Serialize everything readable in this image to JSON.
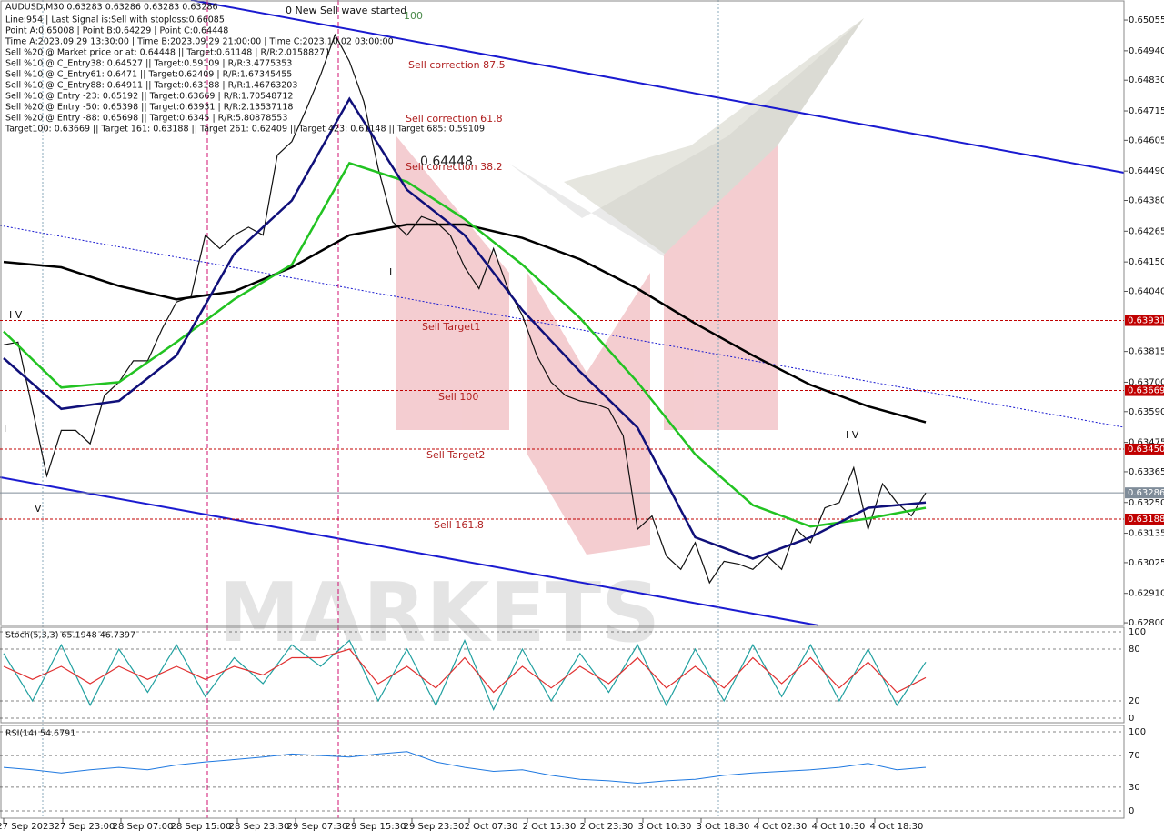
{
  "chart_data": {
    "type": "line",
    "symbol_line": "AUDUSD,M30  0.63283 0.63286 0.63283 0.63286",
    "info": [
      "Line:954 | Last Signal is:Sell with stoploss:0.66085",
      "Point A:0.65008 | Point B:0.64229 | Point C:0.64448",
      "Time A:2023.09.29 13:30:00 | Time B:2023.09.29 21:00:00 | Time C:2023.10.02 03:00:00",
      "Sell %20 @ Market price or at: 0.64448 || Target:0.61148 | R/R:2.01588271",
      "Sell %10 @ C_Entry38: 0.64527 || Target:0.59109 | R/R:3.4775353",
      "Sell %10 @ C_Entry61: 0.6471 || Target:0.62409 | R/R:1.67345455",
      "Sell %10 @ C_Entry88: 0.64911 || Target:0.63188 | R/R:1.46763203",
      "Sell %10 @ Entry -23: 0.65192 || Target:0.63669 | R/R:1.70548712",
      "Sell %20 @ Entry -50: 0.65398 || Target:0.63931 | R/R:2.13537118",
      "Sell %20 @ Entry -88: 0.65698 || Target:0.6345 | R/R:5.80878553",
      "Target100: 0.63669 || Target 161: 0.63188 || Target 261: 0.62409 || Target 423: 0.61148 || Target 685: 0.59109"
    ],
    "annotations": [
      "0 New Sell wave started",
      "100",
      "Sell correction 87.5",
      "Sell correction 61.8",
      "Sell correction 38.2",
      "0.64448",
      "Sell Target1",
      "Sell 100",
      "Sell Target2",
      "Sell 161.8",
      "I V",
      "V",
      "I",
      "I V",
      "I"
    ],
    "xlabels": [
      "27 Sep 2023",
      "27 Sep 23:00",
      "28 Sep 07:00",
      "28 Sep 15:00",
      "28 Sep 23:30",
      "29 Sep 07:30",
      "29 Sep 15:30",
      "29 Sep 23:30",
      "2 Oct 07:30",
      "2 Oct 15:30",
      "2 Oct 23:30",
      "3 Oct 10:30",
      "3 Oct 18:30",
      "4 Oct 02:30",
      "4 Oct 10:30",
      "4 Oct 18:30"
    ],
    "ylim": [
      0.6279,
      0.6513
    ],
    "yticks": [
      0.65055,
      {
        "value": 0.6494,
        "label": "0.64940"
      },
      {
        "value": 0.6483,
        "label": "0.64830"
      },
      0.64715,
      0.64605,
      {
        "value": 0.6449,
        "label": "0.64490"
      },
      {
        "value": 0.6438,
        "label": "0.64380"
      },
      0.64265,
      {
        "value": 0.6415,
        "label": "0.64150"
      },
      {
        "value": 0.6404,
        "label": "0.64040"
      },
      0.63815,
      {
        "value": 0.637,
        "label": "0.63700"
      },
      {
        "value": 0.6359,
        "label": "0.63590"
      },
      0.63475,
      0.63365,
      {
        "value": 0.6325,
        "label": "0.63250"
      },
      0.63135,
      0.63025,
      {
        "value": 0.6291,
        "label": "0.62910"
      },
      {
        "value": 0.628,
        "label": "0.62800"
      }
    ],
    "levels": [
      {
        "value": 0.63931,
        "color": "#c00000"
      },
      {
        "value": 0.63669,
        "color": "#c00000"
      },
      {
        "value": 0.6345,
        "label": "0.63450",
        "color": "#c00000"
      },
      {
        "value": 0.63286,
        "color": "#7f8c99"
      },
      {
        "value": 0.63188,
        "color": "#c00000"
      }
    ],
    "series": [
      {
        "name": "price",
        "color": "#111111",
        "values": [
          0.6384,
          0.6385,
          0.636,
          0.6335,
          0.6352,
          0.6352,
          0.6347,
          0.6365,
          0.637,
          0.6378,
          0.6378,
          0.639,
          0.64,
          0.6402,
          0.6425,
          0.642,
          0.6425,
          0.6428,
          0.6425,
          0.6455,
          0.646,
          0.6472,
          0.6485,
          0.65,
          0.649,
          0.6475,
          0.645,
          0.643,
          0.6425,
          0.6432,
          0.643,
          0.6425,
          0.6413,
          0.6405,
          0.642,
          0.6405,
          0.6395,
          0.638,
          0.637,
          0.6365,
          0.6363,
          0.6362,
          0.636,
          0.635,
          0.6315,
          0.632,
          0.6305,
          0.63,
          0.631,
          0.6295,
          0.6303,
          0.6302,
          0.63,
          0.6305,
          0.63,
          0.6315,
          0.631,
          0.6323,
          0.6325,
          0.6338,
          0.6315,
          0.6332,
          0.6325,
          0.632,
          0.63286
        ]
      },
      {
        "name": "ma-slow",
        "color": "#000000",
        "values": [
          0.6415,
          0.6413,
          0.6406,
          0.6401,
          0.6404,
          0.6413,
          0.6425,
          0.6429,
          0.6429,
          0.6424,
          0.6416,
          0.6405,
          0.6392,
          0.638,
          0.6369,
          0.6361,
          0.6355
        ]
      },
      {
        "name": "ma-mid",
        "color": "#22c322",
        "values": [
          0.6389,
          0.6368,
          0.637,
          0.6385,
          0.6401,
          0.6414,
          0.6452,
          0.6445,
          0.6431,
          0.6414,
          0.6394,
          0.637,
          0.6343,
          0.6324,
          0.6316,
          0.6319,
          0.6323
        ]
      },
      {
        "name": "ma-fast",
        "color": "#10107a",
        "values": [
          0.6379,
          0.636,
          0.6363,
          0.638,
          0.6418,
          0.6438,
          0.6476,
          0.6442,
          0.6425,
          0.6397,
          0.6374,
          0.6353,
          0.6312,
          0.6304,
          0.6312,
          0.6323,
          0.6325
        ]
      }
    ],
    "stoch": {
      "label": "Stoch(5,3,3) 65.1948 46.7397",
      "ylim": [
        0,
        100
      ],
      "yticks": [
        0,
        20,
        80,
        100
      ],
      "series": [
        {
          "color": "#20a0a0",
          "values": [
            75,
            20,
            85,
            15,
            80,
            30,
            85,
            25,
            70,
            40,
            85,
            60,
            90,
            20,
            80,
            15,
            90,
            10,
            80,
            20,
            75,
            30,
            85,
            15,
            80,
            20,
            85,
            25,
            85,
            20,
            80,
            15,
            65
          ]
        },
        {
          "color": "#e03030",
          "values": [
            60,
            45,
            60,
            40,
            60,
            45,
            60,
            45,
            60,
            50,
            70,
            70,
            80,
            40,
            60,
            35,
            70,
            30,
            60,
            35,
            60,
            40,
            70,
            35,
            60,
            35,
            70,
            40,
            70,
            35,
            65,
            30,
            47
          ]
        }
      ]
    },
    "rsi": {
      "label": "RSI(14) 54.6791",
      "ylim": [
        0,
        100
      ],
      "yticks": [
        0,
        30,
        70,
        100
      ],
      "color": "#1e78e0",
      "values": [
        55,
        52,
        48,
        52,
        55,
        52,
        58,
        62,
        65,
        68,
        72,
        70,
        68,
        72,
        75,
        62,
        55,
        50,
        52,
        45,
        40,
        38,
        35,
        38,
        40,
        45,
        48,
        50,
        52,
        55,
        60,
        52,
        55
      ]
    }
  }
}
